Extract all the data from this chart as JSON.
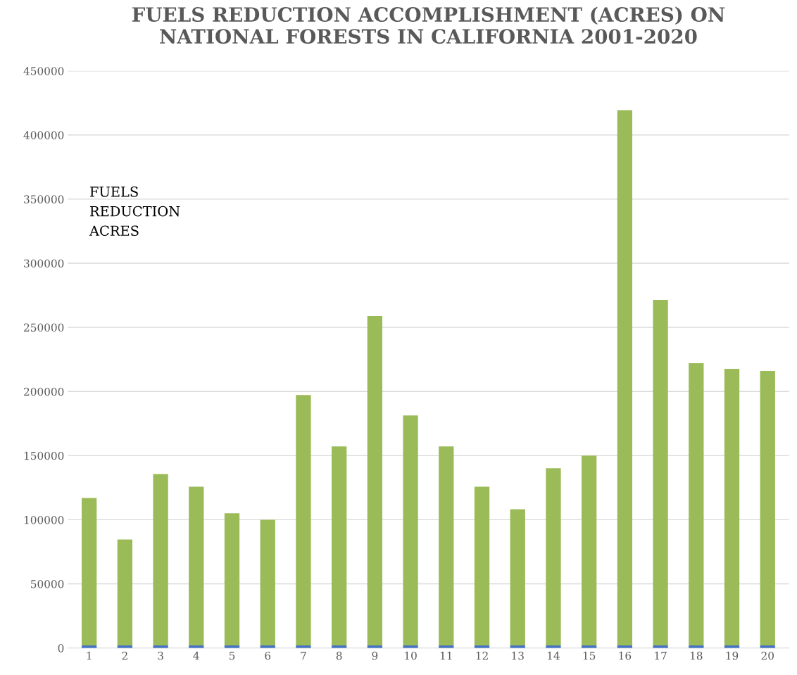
{
  "chart_data": {
    "type": "bar",
    "title": "FUELS REDUCTION ACCOMPLISHMENT (ACRES) ON\nNATIONAL FORESTS IN CALIFORNIA 2001-2020",
    "categories": [
      "1",
      "2",
      "3",
      "4",
      "5",
      "6",
      "7",
      "8",
      "9",
      "10",
      "11",
      "12",
      "13",
      "14",
      "15",
      "16",
      "17",
      "18",
      "19",
      "20"
    ],
    "stacked": true,
    "series": [
      {
        "color": "#4472c4",
        "values": [
          2001,
          2002,
          2003,
          2004,
          2005,
          2006,
          2007,
          2008,
          2009,
          2010,
          2011,
          2012,
          2013,
          2014,
          2015,
          2016,
          2017,
          2018,
          2019,
          2020
        ]
      },
      {
        "color": "#9bbb59",
        "values": [
          115000,
          82600,
          133700,
          123800,
          103000,
          98000,
          195300,
          155200,
          256800,
          179300,
          155200,
          123800,
          106200,
          138100,
          148000,
          417300,
          269500,
          220000,
          215600,
          214000
        ]
      }
    ],
    "ylim": [
      0,
      450000
    ],
    "yticks": [
      0,
      50000,
      100000,
      150000,
      200000,
      250000,
      300000,
      350000,
      400000,
      450000
    ],
    "grid": "y",
    "legend": false,
    "annotations": [
      "FUELS\nREDUCTION\nACRES"
    ]
  }
}
